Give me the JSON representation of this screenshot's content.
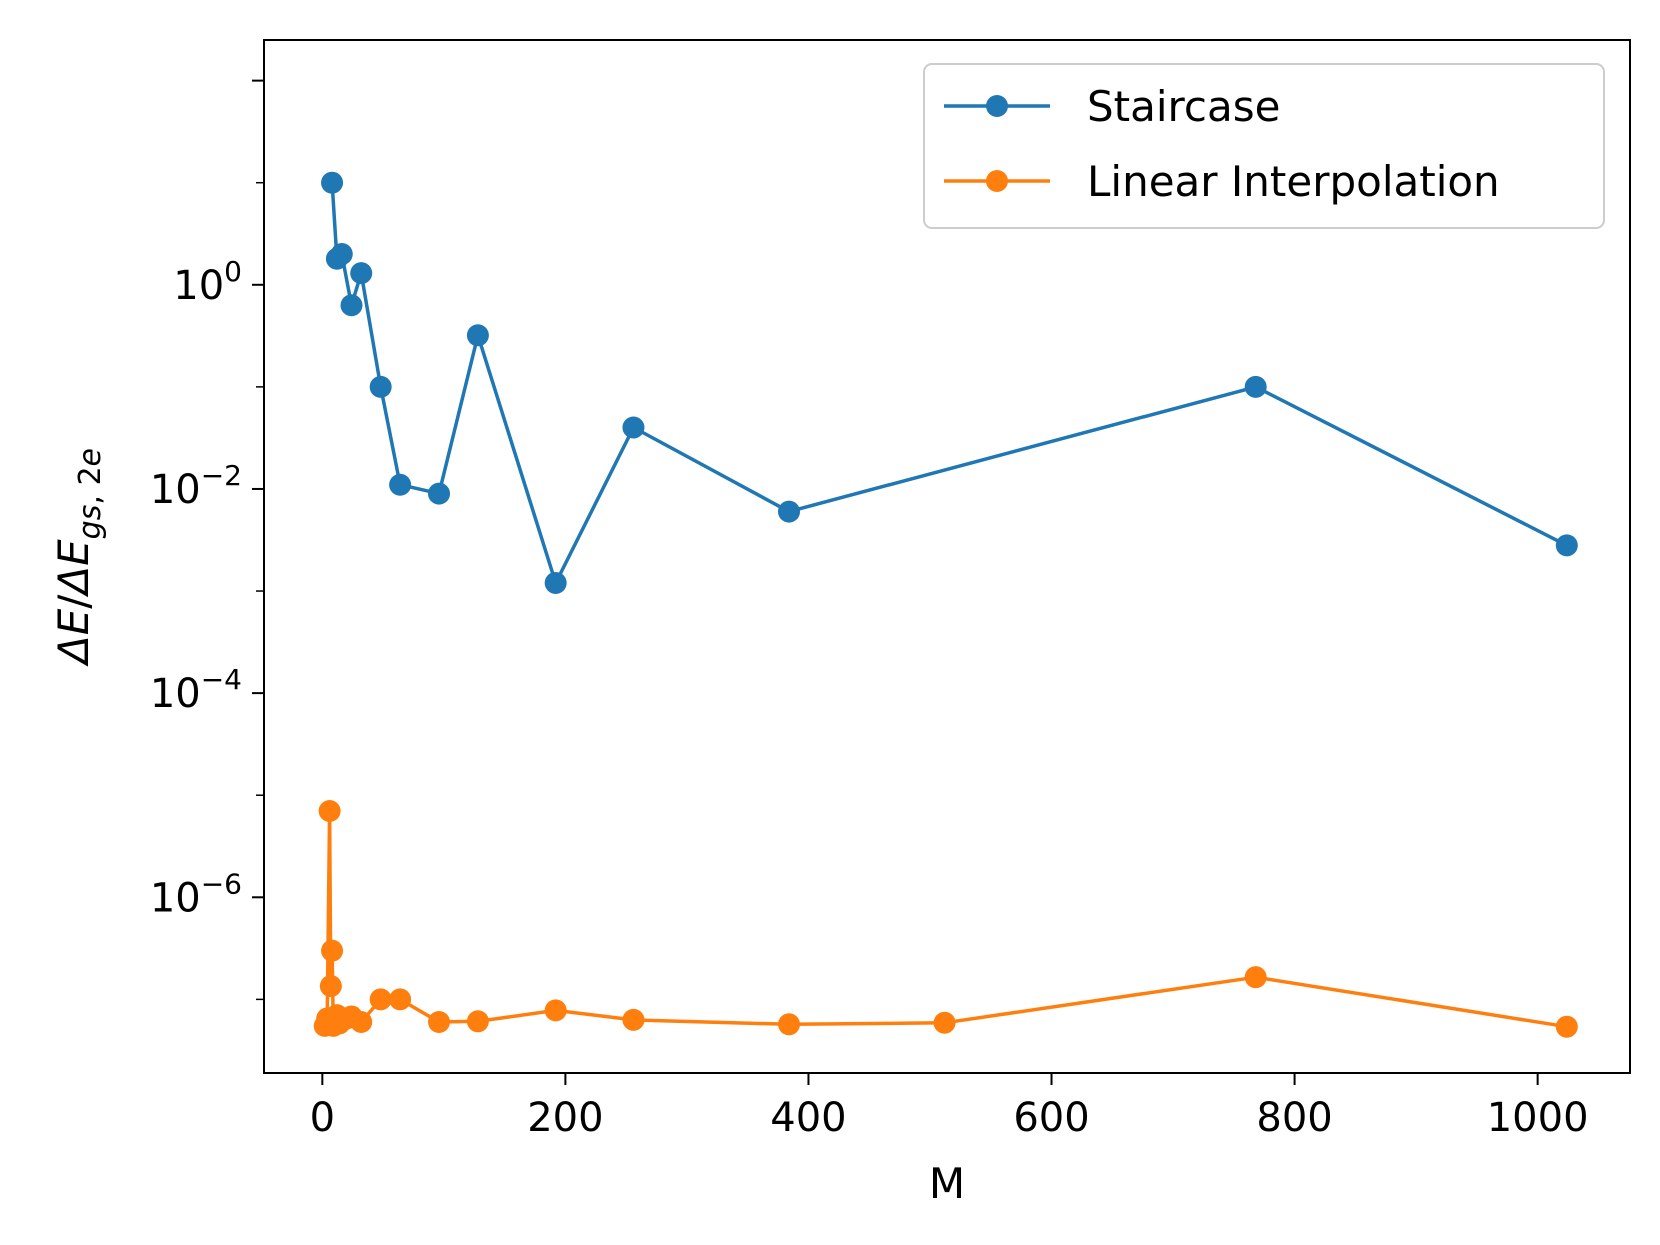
{
  "chart_data": {
    "type": "line",
    "xlabel": "M",
    "ylabel": "ΔE/ΔE_gs,2e",
    "xlim": [
      -48,
      1076
    ],
    "ylim": [
      1.9e-08,
      250
    ],
    "yscale": "log",
    "x_ticks": [
      0,
      200,
      400,
      600,
      800,
      1000
    ],
    "y_ticks": [
      {
        "value": 1,
        "base": "10",
        "exp": "0"
      },
      {
        "value": 0.01,
        "base": "10",
        "exp": "−2"
      },
      {
        "value": 0.0001,
        "base": "10",
        "exp": "−4"
      },
      {
        "value": 1e-06,
        "base": "10",
        "exp": "−6"
      }
    ],
    "grid": false,
    "legend_position": "top-right",
    "series": [
      {
        "name": "Staircase",
        "color": "#1f77b4",
        "x": [
          8,
          12,
          16,
          24,
          32,
          48,
          64,
          96,
          128,
          192,
          256,
          384,
          768,
          1024
        ],
        "y": [
          10,
          1.8,
          2.0,
          0.63,
          1.3,
          0.1,
          0.011,
          0.009,
          0.32,
          0.0012,
          0.04,
          0.006,
          0.1,
          0.0028
        ]
      },
      {
        "name": "Linear Interpolation",
        "color": "#ff7f0e",
        "x": [
          2,
          4,
          6,
          7,
          8,
          9,
          10,
          12,
          14,
          16,
          20,
          24,
          32,
          48,
          64,
          96,
          128,
          192,
          256,
          384,
          512,
          768,
          1024
        ],
        "y": [
          5.5e-08,
          6.5e-08,
          7e-06,
          1.35e-07,
          3e-07,
          5.5e-08,
          6e-08,
          7e-08,
          5.8e-08,
          6.2e-08,
          6.5e-08,
          6.8e-08,
          6e-08,
          1e-07,
          1e-07,
          6e-08,
          6.1e-08,
          7.8e-08,
          6.3e-08,
          5.7e-08,
          5.9e-08,
          1.65e-07,
          5.4e-08
        ]
      }
    ]
  }
}
